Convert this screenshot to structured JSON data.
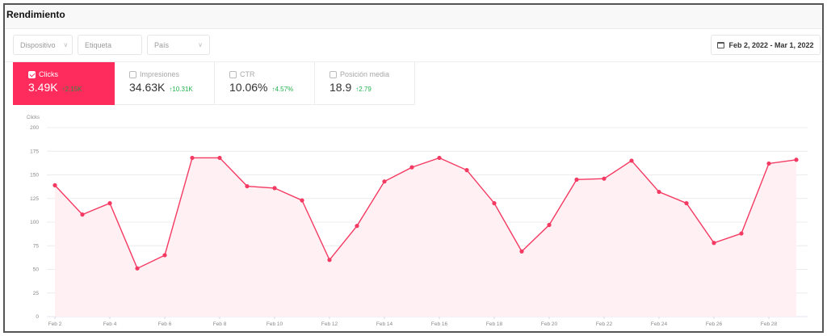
{
  "panel": {
    "title": "Rendimiento"
  },
  "filters": [
    {
      "label": "Dispositivo",
      "has_chevron": true
    },
    {
      "label": "Etiqueta",
      "has_chevron": false
    },
    {
      "label": "País",
      "has_chevron": true
    }
  ],
  "date_range": {
    "label": "Feb 2, 2022 - Mar 1, 2022",
    "icon": "calendar-icon"
  },
  "metrics": [
    {
      "label": "Clicks",
      "value": "3.49K",
      "delta": "↑2.15K",
      "checked": true
    },
    {
      "label": "Impresiones",
      "value": "34.63K",
      "delta": "↑10.31K",
      "checked": false
    },
    {
      "label": "CTR",
      "value": "10.06%",
      "delta": "↑4.57%",
      "checked": false
    },
    {
      "label": "Posición media",
      "value": "18.9",
      "delta": "↑2.79",
      "checked": false
    }
  ],
  "colors": {
    "accent": "#fe2b5d",
    "line": "#f43a62",
    "area": "#fff0f3",
    "delta_positive": "#22b24c",
    "grid": "#ececec"
  },
  "chart_data": {
    "type": "area",
    "title": "",
    "xlabel": "",
    "ylabel": "Clicks",
    "ylim": [
      0,
      200
    ],
    "y_ticks": [
      0,
      25,
      50,
      75,
      100,
      125,
      150,
      175,
      200
    ],
    "x_tick_labels": [
      "Feb 2",
      "Feb 4",
      "Feb 6",
      "Feb 8",
      "Feb 10",
      "Feb 12",
      "Feb 14",
      "Feb 16",
      "Feb 18",
      "Feb 20",
      "Feb 22",
      "Feb 24",
      "Feb 26",
      "Feb 28"
    ],
    "grid": true,
    "legend": "none",
    "x": [
      "Feb 2",
      "Feb 3",
      "Feb 4",
      "Feb 5",
      "Feb 6",
      "Feb 7",
      "Feb 8",
      "Feb 9",
      "Feb 10",
      "Feb 11",
      "Feb 12",
      "Feb 13",
      "Feb 14",
      "Feb 15",
      "Feb 16",
      "Feb 17",
      "Feb 18",
      "Feb 19",
      "Feb 20",
      "Feb 21",
      "Feb 22",
      "Feb 23",
      "Feb 24",
      "Feb 25",
      "Feb 26",
      "Feb 27",
      "Feb 28",
      "Mar 1"
    ],
    "series": [
      {
        "name": "Clicks",
        "values": [
          139,
          108,
          120,
          51,
          65,
          168,
          168,
          138,
          136,
          123,
          60,
          96,
          143,
          158,
          168,
          155,
          120,
          69,
          97,
          145,
          146,
          165,
          132,
          120,
          78,
          88,
          162,
          166
        ]
      }
    ]
  }
}
